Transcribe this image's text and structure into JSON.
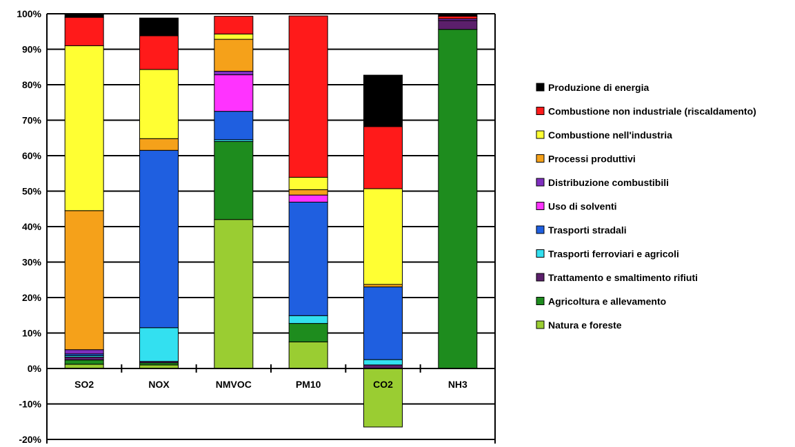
{
  "chart_data": {
    "type": "bar",
    "stacked": true,
    "title": "",
    "xlabel": "",
    "ylabel": "",
    "ylim": [
      -0.2,
      1.0
    ],
    "yticks": [
      -0.2,
      -0.1,
      0,
      0.1,
      0.2,
      0.3,
      0.4,
      0.5,
      0.6,
      0.7,
      0.8,
      0.9,
      1.0
    ],
    "ytick_labels": [
      "-20%",
      "-10%",
      "0%",
      "10%",
      "20%",
      "30%",
      "40%",
      "50%",
      "60%",
      "70%",
      "80%",
      "90%",
      "100%"
    ],
    "grid": true,
    "legend_position": "right",
    "categories": [
      "SO2",
      "NOX",
      "NMVOC",
      "PM10",
      "CO2",
      "NH3"
    ],
    "category_colors": [
      "#000000",
      "#000000",
      "#000000",
      "#000000",
      "#a7c825",
      "#000000"
    ],
    "series": [
      {
        "name": "Natura e foreste",
        "color": "#9acd32",
        "values": [
          0.012,
          0.01,
          0.42,
          0.075,
          -0.165,
          0.0
        ]
      },
      {
        "name": "Agricoltura e allevamento",
        "color": "#1e8c1e",
        "values": [
          0.012,
          0.006,
          0.22,
          0.052,
          0.0,
          0.956
        ]
      },
      {
        "name": "Trattamento e smaltimento rifiuti",
        "color": "#5b1f6b",
        "values": [
          0.008,
          0.004,
          0.0,
          0.0,
          0.01,
          0.025
        ]
      },
      {
        "name": "Trasporti ferroviari e agricoli",
        "color": "#33e0f0",
        "values": [
          0.004,
          0.095,
          0.005,
          0.022,
          0.015,
          0.0
        ]
      },
      {
        "name": "Trasporti stradali",
        "color": "#1f5fe0",
        "values": [
          0.005,
          0.5,
          0.08,
          0.32,
          0.205,
          0.0
        ]
      },
      {
        "name": "Uso di solventi",
        "color": "#ff33ff",
        "values": [
          0.0,
          0.0,
          0.103,
          0.02,
          0.0,
          0.0
        ]
      },
      {
        "name": "Distribuzione combustibili",
        "color": "#7f2fbf",
        "values": [
          0.012,
          0.0,
          0.01,
          0.0,
          0.0,
          0.005
        ]
      },
      {
        "name": "Processi produttivi",
        "color": "#f5a11a",
        "values": [
          0.392,
          0.033,
          0.09,
          0.015,
          0.007,
          0.0
        ]
      },
      {
        "name": "Combustione nell'industria",
        "color": "#ffff33",
        "values": [
          0.465,
          0.195,
          0.015,
          0.035,
          0.27,
          0.0
        ]
      },
      {
        "name": "Combustione non industriale (riscaldamento)",
        "color": "#ff1a1a",
        "values": [
          0.08,
          0.095,
          0.05,
          0.455,
          0.175,
          0.007
        ]
      },
      {
        "name": "Produzione di energia",
        "color": "#000000",
        "values": [
          0.01,
          0.05,
          0.0,
          0.0,
          0.145,
          0.007
        ]
      }
    ]
  }
}
